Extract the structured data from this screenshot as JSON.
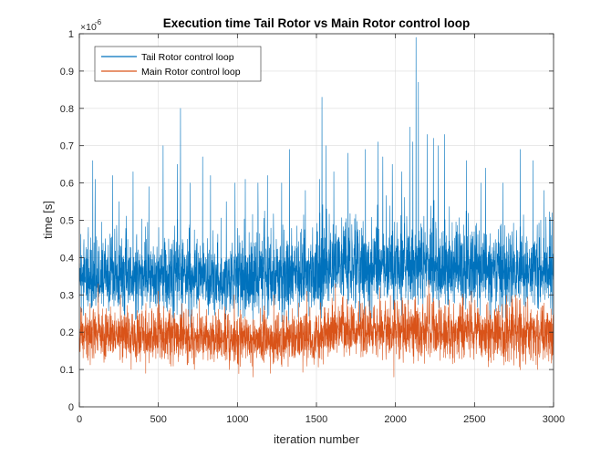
{
  "chart_data": {
    "type": "line",
    "title": "Execution time Tail Rotor vs Main Rotor control loop",
    "xlabel": "iteration number",
    "ylabel": "time [s]",
    "y_exponent_label": "×10",
    "y_exponent_power": "-6",
    "xlim": [
      0,
      3000
    ],
    "ylim": [
      0,
      1
    ],
    "x_ticks": [
      0,
      500,
      1000,
      1500,
      2000,
      2500,
      3000
    ],
    "y_ticks": [
      0,
      0.1,
      0.2,
      0.3,
      0.4,
      0.5,
      0.6,
      0.7,
      0.8,
      0.9,
      1
    ],
    "grid": true,
    "legend_position": "top-left",
    "series": [
      {
        "name": "Tail Rotor control loop",
        "color": "#0072BD",
        "band": [
          [
            0,
            0.26,
            0.44
          ],
          [
            500,
            0.26,
            0.44
          ],
          [
            1000,
            0.25,
            0.44
          ],
          [
            1500,
            0.26,
            0.45
          ],
          [
            1600,
            0.28,
            0.47
          ],
          [
            2000,
            0.28,
            0.48
          ],
          [
            2500,
            0.27,
            0.46
          ],
          [
            3000,
            0.27,
            0.45
          ]
        ],
        "peaks": [
          [
            85,
            0.66
          ],
          [
            100,
            0.61
          ],
          [
            210,
            0.62
          ],
          [
            250,
            0.55
          ],
          [
            340,
            0.63
          ],
          [
            440,
            0.59
          ],
          [
            530,
            0.7
          ],
          [
            620,
            0.65
          ],
          [
            640,
            0.8
          ],
          [
            700,
            0.6
          ],
          [
            780,
            0.67
          ],
          [
            830,
            0.62
          ],
          [
            930,
            0.55
          ],
          [
            985,
            0.6
          ],
          [
            1050,
            0.61
          ],
          [
            1130,
            0.6
          ],
          [
            1190,
            0.62
          ],
          [
            1280,
            0.6
          ],
          [
            1330,
            0.69
          ],
          [
            1430,
            0.58
          ],
          [
            1520,
            0.61
          ],
          [
            1535,
            0.83
          ],
          [
            1560,
            0.7
          ],
          [
            1610,
            0.63
          ],
          [
            1700,
            0.68
          ],
          [
            1810,
            0.69
          ],
          [
            1890,
            0.71
          ],
          [
            1920,
            0.67
          ],
          [
            1980,
            0.65
          ],
          [
            2040,
            0.63
          ],
          [
            2090,
            0.75
          ],
          [
            2110,
            0.71
          ],
          [
            2130,
            0.99
          ],
          [
            2145,
            0.87
          ],
          [
            2200,
            0.73
          ],
          [
            2240,
            0.72
          ],
          [
            2270,
            0.7
          ],
          [
            2310,
            0.73
          ],
          [
            2450,
            0.66
          ],
          [
            2540,
            0.6
          ],
          [
            2570,
            0.64
          ],
          [
            2680,
            0.6
          ],
          [
            2790,
            0.69
          ],
          [
            2870,
            0.66
          ],
          [
            2940,
            0.58
          ],
          [
            2990,
            0.52
          ]
        ]
      },
      {
        "name": "Main Rotor control loop",
        "color": "#D95319",
        "band": [
          [
            0,
            0.13,
            0.25
          ],
          [
            500,
            0.13,
            0.25
          ],
          [
            1000,
            0.12,
            0.24
          ],
          [
            1500,
            0.12,
            0.25
          ],
          [
            1600,
            0.14,
            0.27
          ],
          [
            2000,
            0.14,
            0.27
          ],
          [
            2500,
            0.13,
            0.27
          ],
          [
            3000,
            0.13,
            0.26
          ]
        ],
        "peaks": [
          [
            120,
            0.33
          ],
          [
            260,
            0.3
          ],
          [
            500,
            0.31
          ],
          [
            760,
            0.29
          ],
          [
            980,
            0.3
          ],
          [
            1230,
            0.3
          ],
          [
            1440,
            0.31
          ],
          [
            1620,
            0.33
          ],
          [
            1900,
            0.32
          ],
          [
            2210,
            0.34
          ],
          [
            2480,
            0.31
          ],
          [
            2760,
            0.3
          ]
        ],
        "dips": [
          [
            420,
            0.09
          ],
          [
            1100,
            0.08
          ],
          [
            1990,
            0.08
          ],
          [
            2900,
            0.1
          ]
        ]
      }
    ]
  }
}
